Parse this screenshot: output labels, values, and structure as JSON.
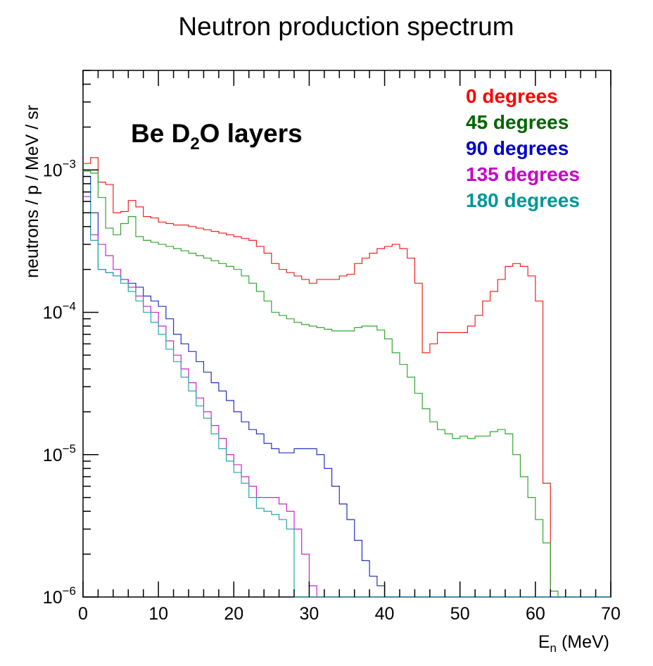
{
  "chart_data": {
    "type": "line",
    "title": "Neutron production spectrum",
    "xlabel": {
      "main": "E",
      "sub": "n",
      "unit": " (MeV)"
    },
    "ylabel": "neutrons / p / MeV / sr",
    "xlim": [
      0,
      70
    ],
    "ylim": [
      1e-06,
      0.005
    ],
    "yscale": "log",
    "bin_width": 1,
    "x_ticks": [
      {
        "value": 0,
        "label": "0"
      },
      {
        "value": 10,
        "label": "10"
      },
      {
        "value": 20,
        "label": "20"
      },
      {
        "value": 30,
        "label": "30"
      },
      {
        "value": 40,
        "label": "40"
      },
      {
        "value": 50,
        "label": "50"
      },
      {
        "value": 60,
        "label": "60"
      },
      {
        "value": 70,
        "label": "70"
      }
    ],
    "y_ticks": [
      {
        "value": 1e-06,
        "base": "10",
        "exp": "−6"
      },
      {
        "value": 1e-05,
        "base": "10",
        "exp": "−5"
      },
      {
        "value": 0.0001,
        "base": "10",
        "exp": "−4"
      },
      {
        "value": 0.001,
        "base": "10",
        "exp": "−3"
      }
    ],
    "annotation": {
      "prefix": "Be D",
      "sub": "2",
      "suffix": "O layers"
    },
    "series": [
      {
        "name": "0 degrees",
        "color": "#ee2222",
        "values": [
          0.00111,
          0.00122,
          0.00082,
          0.00079,
          0.0005,
          0.00051,
          0.00061,
          0.00055,
          0.00047,
          0.00046,
          0.00043,
          0.00042,
          0.00041,
          0.00041,
          0.0004,
          0.00039,
          0.00038,
          0.00037,
          0.00036,
          0.00035,
          0.00034,
          0.00033,
          0.00032,
          0.00029,
          0.00026,
          0.00022,
          0.0002,
          0.00019,
          0.00018,
          0.00017,
          0.00016,
          0.00017,
          0.00017,
          0.00017,
          0.00018,
          0.000185,
          0.00022,
          0.00024,
          0.00026,
          0.00028,
          0.00029,
          0.0003,
          0.00028,
          0.00024,
          0.00016,
          5.2e-05,
          6e-05,
          7.2e-05,
          7.2e-05,
          7.2e-05,
          7.2e-05,
          8e-05,
          9.5e-05,
          0.00012,
          0.00014,
          0.00017,
          0.00021,
          0.00022,
          0.00021,
          0.00018,
          0.00012,
          6.3e-06,
          0,
          0,
          0,
          0,
          0,
          0,
          0,
          0
        ]
      },
      {
        "name": "45 degrees",
        "color": "#33a633",
        "values": [
          0.00098,
          0.00095,
          0.00064,
          0.00039,
          0.00035,
          0.00042,
          0.00047,
          0.00034,
          0.00032,
          0.00031,
          0.0003,
          0.00029,
          0.00028,
          0.00027,
          0.00026,
          0.00025,
          0.00024,
          0.00023,
          0.00022,
          0.00021,
          0.0002,
          0.00018,
          0.00016,
          0.00014,
          0.00012,
          0.0001,
          9.5e-05,
          9e-05,
          8.5e-05,
          8.2e-05,
          8e-05,
          7.8e-05,
          7.6e-05,
          7.4e-05,
          7.4e-05,
          7.4e-05,
          7.8e-05,
          8e-05,
          8e-05,
          7.5e-05,
          6.5e-05,
          5.2e-05,
          4.3e-05,
          3.5e-05,
          2.7e-05,
          2.1e-05,
          1.7e-05,
          1.5e-05,
          1.4e-05,
          1.3e-05,
          1.35e-05,
          1.3e-05,
          1.35e-05,
          1.35e-05,
          1.45e-05,
          1.5e-05,
          1.4e-05,
          1e-05,
          7e-06,
          5e-06,
          3.5e-06,
          2.4e-06,
          1.1e-06,
          0,
          0,
          0,
          0,
          0,
          0,
          0
        ]
      },
      {
        "name": "90 degrees",
        "color": "#2233bb",
        "values": [
          0.0009,
          0.0005,
          0.0002,
          0.00019,
          0.00018,
          0.00017,
          0.00016,
          0.00015,
          0.00013,
          0.00012,
          0.00011,
          9e-05,
          7e-05,
          6e-05,
          5.3e-05,
          4.5e-05,
          3.8e-05,
          3.2e-05,
          2.8e-05,
          2.4e-05,
          2e-05,
          1.7e-05,
          1.5e-05,
          1.4e-05,
          1.2e-05,
          1.1e-05,
          1.03e-05,
          1.03e-05,
          1.1e-05,
          1.1e-05,
          1.1e-05,
          1e-05,
          8e-06,
          6e-06,
          4.5e-06,
          3.5e-06,
          2.5e-06,
          1.8e-06,
          1.4e-06,
          1.2e-06,
          1e-06,
          0,
          0,
          0,
          0,
          0,
          0,
          0,
          0,
          0,
          0,
          0,
          0,
          0,
          0,
          0,
          0,
          0,
          0,
          0,
          0,
          0,
          0,
          0,
          0,
          0,
          0,
          0,
          0,
          0
        ]
      },
      {
        "name": "135 degrees",
        "color": "#cc22cc",
        "values": [
          0.00065,
          0.00035,
          0.0003,
          0.00025,
          0.0002,
          0.00017,
          0.00015,
          0.00013,
          0.00011,
          0.0001,
          8e-05,
          6.3e-05,
          5e-05,
          4e-05,
          3.2e-05,
          2.5e-05,
          2e-05,
          1.6e-05,
          1.3e-05,
          1e-05,
          8.5e-06,
          7e-06,
          6e-06,
          5e-06,
          5e-06,
          5e-06,
          4.5e-06,
          4e-06,
          3e-06,
          2e-06,
          1.2e-06,
          0,
          0,
          0,
          0,
          0,
          0,
          0,
          0,
          0,
          0,
          0,
          0,
          0,
          0,
          0,
          0,
          0,
          0,
          0,
          0,
          0,
          0,
          0,
          0,
          0,
          0,
          0,
          0,
          0,
          0,
          0,
          0,
          0,
          0,
          0,
          0,
          0,
          0,
          0
        ]
      },
      {
        "name": "180 degrees",
        "color": "#22aaaa",
        "values": [
          0.0008,
          0.00032,
          0.0002,
          0.00019,
          0.00018,
          0.00016,
          0.00014,
          0.00012,
          0.0001,
          8.5e-05,
          7e-05,
          5.5e-05,
          4.5e-05,
          3.5e-05,
          2.8e-05,
          2.2e-05,
          1.8e-05,
          1.4e-05,
          1.1e-05,
          9e-06,
          7.5e-06,
          6.3e-06,
          5e-06,
          4.2e-06,
          4e-06,
          3.8e-06,
          3.5e-06,
          3e-06,
          0,
          0,
          0,
          0,
          0,
          0,
          0,
          0,
          0,
          0,
          0,
          0,
          0,
          0,
          0,
          0,
          0,
          0,
          0,
          0,
          0,
          0,
          0,
          0,
          0,
          0,
          0,
          0,
          0,
          0,
          0,
          0,
          0,
          0,
          0,
          0,
          0,
          0,
          0,
          0,
          0,
          0
        ]
      }
    ],
    "legend": [
      {
        "label": "0 degrees",
        "color": "#ff0000"
      },
      {
        "label": "45 degrees",
        "color": "#006400"
      },
      {
        "label": "90 degrees",
        "color": "#0000c8"
      },
      {
        "label": "135 degrees",
        "color": "#c800c8"
      },
      {
        "label": "180 degrees",
        "color": "#009696"
      }
    ],
    "legend_position": "top-right"
  }
}
